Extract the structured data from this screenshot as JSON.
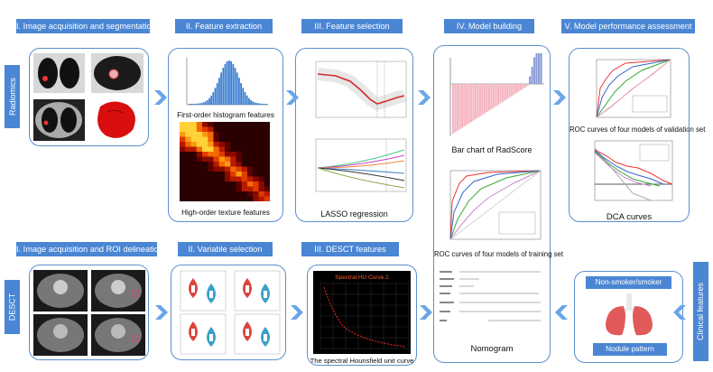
{
  "top_row": {
    "stages": [
      {
        "label": "I. Image acquisition and segmentation"
      },
      {
        "label": "II. Feature extraction"
      },
      {
        "label": "III. Feature selection"
      },
      {
        "label": "IV. Model building"
      },
      {
        "label": "V. Model performance assessment"
      }
    ]
  },
  "bottom_row": {
    "stages": [
      {
        "label": "I. Image acquisition and ROI delineation"
      },
      {
        "label": "II. Variable selection"
      },
      {
        "label": "III. DESCT features"
      }
    ]
  },
  "side_labels": {
    "radiomics": "Radiomics",
    "desct": "DESCT",
    "clinical": "Clinical features"
  },
  "captions": {
    "first_order": "First-order histogram features",
    "high_order": "High-order texture features",
    "lasso": "LASSO regression",
    "radscore": "Bar chart of RadScore",
    "roc_training": "ROC curves of four models of training set",
    "nomogram": "Nomogram",
    "roc_validation": "ROC curves of four models of validation set",
    "dca": "DCA curves",
    "hounsfield": "The spectral Hounsfield unit curve",
    "spectral_title": "Spectral HU Curve 2"
  },
  "clinical": {
    "smoker": "Non-smoker/smoker",
    "nodule": "Nodule pattern"
  },
  "colors": {
    "accent": "#4a86d4",
    "border": "#5b8fd0",
    "bar_pink": "#f4b6c2",
    "lung": "#e05a5a"
  }
}
